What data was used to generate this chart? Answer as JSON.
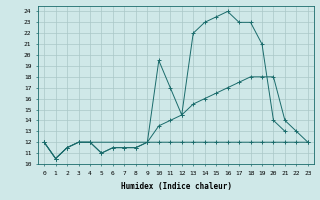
{
  "xlabel": "Humidex (Indice chaleur)",
  "background_color": "#cfe8e8",
  "grid_color": "#aac8c8",
  "line_color": "#1a6b6b",
  "xlim": [
    -0.5,
    23.5
  ],
  "ylim": [
    10,
    24.5
  ],
  "xticks": [
    0,
    1,
    2,
    3,
    4,
    5,
    6,
    7,
    8,
    9,
    10,
    11,
    12,
    13,
    14,
    15,
    16,
    17,
    18,
    19,
    20,
    21,
    22,
    23
  ],
  "yticks": [
    10,
    11,
    12,
    13,
    14,
    15,
    16,
    17,
    18,
    19,
    20,
    21,
    22,
    23,
    24
  ],
  "line1_x": [
    0,
    1,
    2,
    3,
    4,
    5,
    6,
    7,
    8,
    9,
    10,
    11,
    12,
    13,
    14,
    15,
    16,
    17,
    18,
    19,
    20,
    21,
    22,
    23
  ],
  "line1_y": [
    12.0,
    10.5,
    11.5,
    12.0,
    12.0,
    11.0,
    11.5,
    11.5,
    11.5,
    12.0,
    12.0,
    12.0,
    12.0,
    12.0,
    12.0,
    12.0,
    12.0,
    12.0,
    12.0,
    12.0,
    12.0,
    12.0,
    12.0,
    12.0
  ],
  "line2_x": [
    0,
    1,
    2,
    3,
    4,
    5,
    6,
    7,
    8,
    9,
    10,
    11,
    12,
    13,
    14,
    15,
    16,
    17,
    18,
    19,
    20,
    21
  ],
  "line2_y": [
    12.0,
    10.5,
    11.5,
    12.0,
    12.0,
    11.0,
    11.5,
    11.5,
    11.5,
    12.0,
    19.5,
    17.0,
    14.5,
    22.0,
    23.0,
    23.5,
    24.0,
    23.0,
    23.0,
    21.0,
    14.0,
    13.0
  ],
  "line3_x": [
    0,
    1,
    2,
    3,
    4,
    9,
    10,
    11,
    12,
    13,
    14,
    15,
    16,
    17,
    18,
    19,
    20,
    21,
    22,
    23
  ],
  "line3_y": [
    12.0,
    10.5,
    11.5,
    12.0,
    12.0,
    12.0,
    13.5,
    14.0,
    14.5,
    15.5,
    16.0,
    16.5,
    17.0,
    17.5,
    18.0,
    18.0,
    18.0,
    14.0,
    13.0,
    12.0
  ]
}
